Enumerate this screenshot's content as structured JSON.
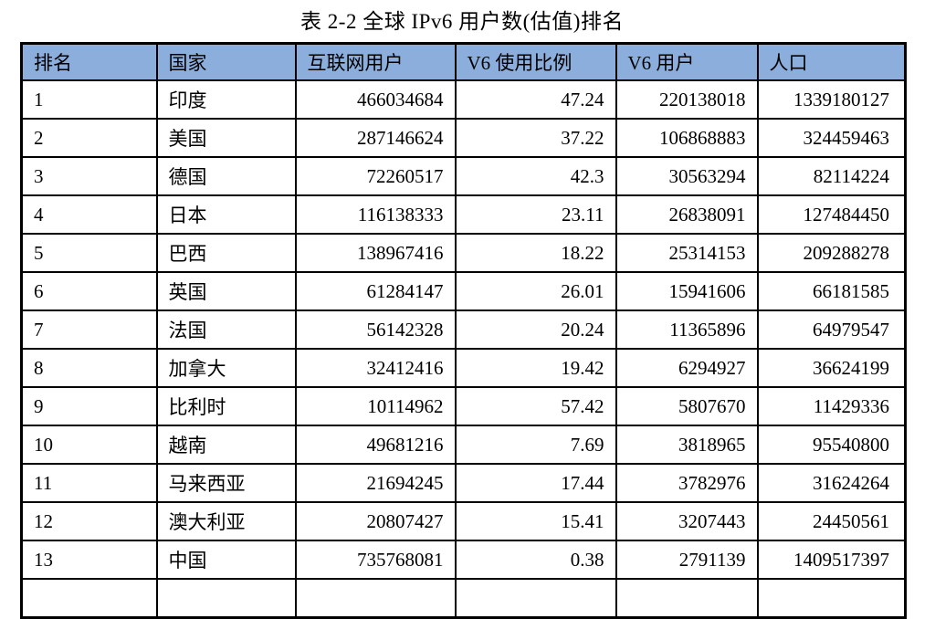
{
  "title": "表 2-2  全球 IPv6 用户数(估值)排名",
  "colors": {
    "header_bg": "#8CAEDC",
    "border": "#000000",
    "text": "#000000",
    "page_bg": "#FFFFFF"
  },
  "table": {
    "columns": [
      {
        "label": "排名"
      },
      {
        "label": "国家"
      },
      {
        "label": "互联网用户"
      },
      {
        "label": "V6 使用比例"
      },
      {
        "label": "V6 用户"
      },
      {
        "label": "人口"
      }
    ],
    "rows": [
      [
        "1",
        "印度",
        "466034684",
        "47.24",
        "220138018",
        "1339180127"
      ],
      [
        "2",
        "美国",
        "287146624",
        "37.22",
        "106868883",
        "324459463"
      ],
      [
        "3",
        "德国",
        "72260517",
        "42.3",
        "30563294",
        "82114224"
      ],
      [
        "4",
        "日本",
        "116138333",
        "23.11",
        "26838091",
        "127484450"
      ],
      [
        "5",
        "巴西",
        "138967416",
        "18.22",
        "25314153",
        "209288278"
      ],
      [
        "6",
        "英国",
        "61284147",
        "26.01",
        "15941606",
        "66181585"
      ],
      [
        "7",
        "法国",
        "56142328",
        "20.24",
        "11365896",
        "64979547"
      ],
      [
        "8",
        "加拿大",
        "32412416",
        "19.42",
        "6294927",
        "36624199"
      ],
      [
        "9",
        "比利时",
        "10114962",
        "57.42",
        "5807670",
        "11429336"
      ],
      [
        "10",
        "越南",
        "49681216",
        "7.69",
        "3818965",
        "95540800"
      ],
      [
        "11",
        "马来西亚",
        "21694245",
        "17.44",
        "3782976",
        "31624264"
      ],
      [
        "12",
        "澳大利亚",
        "20807427",
        "15.41",
        "3207443",
        "24450561"
      ],
      [
        "13",
        "中国",
        "735768081",
        "0.38",
        "2791139",
        "1409517397"
      ]
    ],
    "partial_next_row": [
      "",
      "",
      "",
      "",
      "",
      ""
    ]
  }
}
